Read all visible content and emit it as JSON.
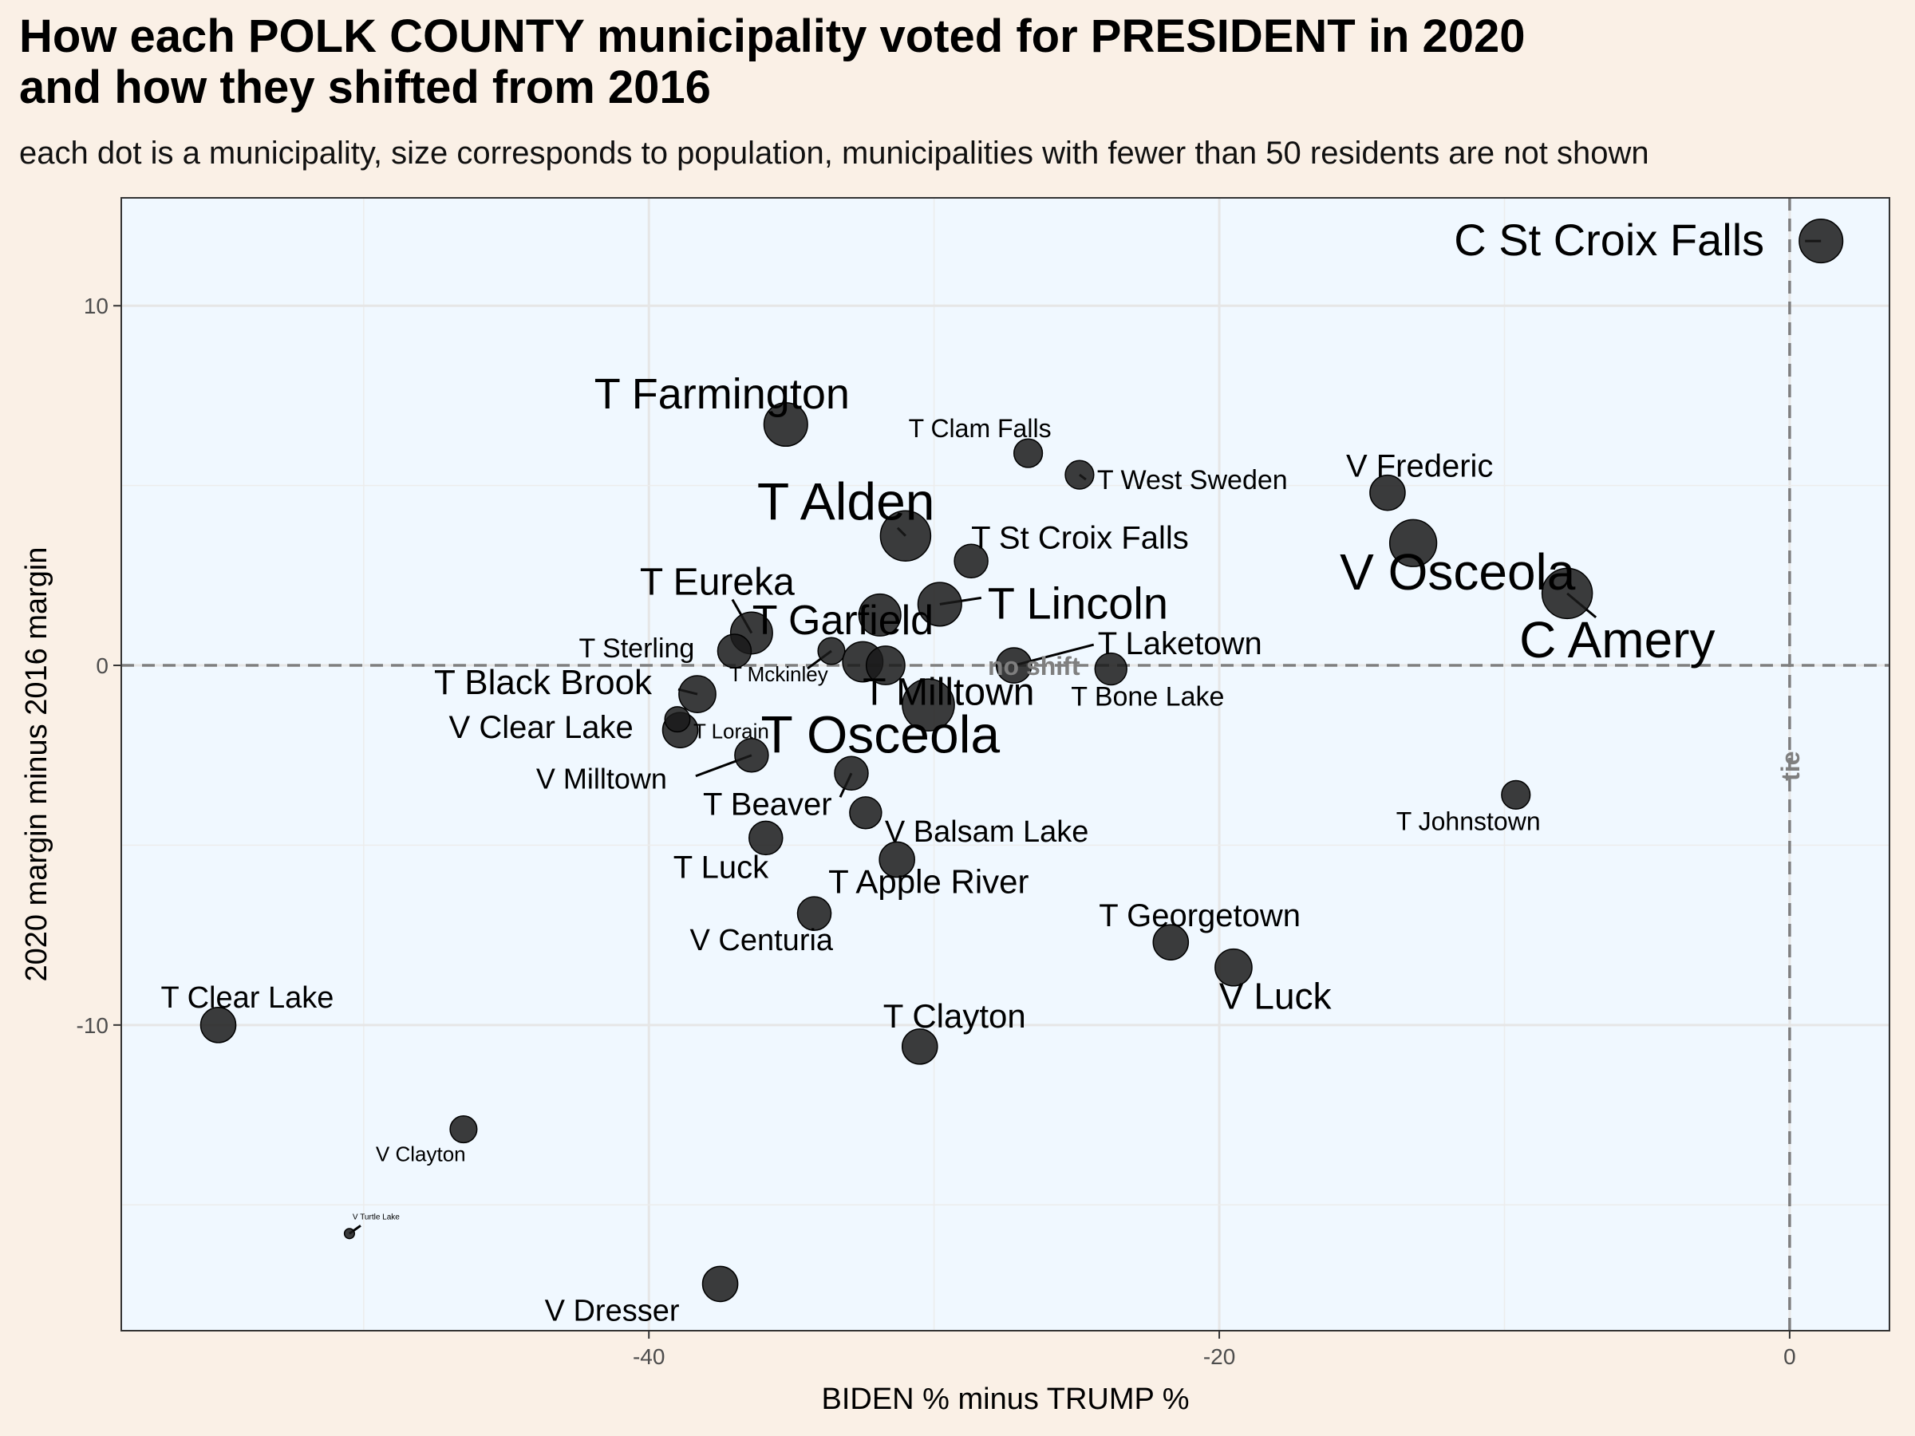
{
  "chart_data": {
    "type": "scatter",
    "title": "How each POLK COUNTY municipality voted for PRESIDENT in 2020\nand how they shifted from 2016",
    "subtitle": "each dot is a municipality, size corresponds to population, municipalities with fewer than 50 residents are not shown",
    "xlabel": "BIDEN % minus TRUMP %",
    "ylabel": "2020 margin minus 2016 margin",
    "xlim": [
      -58.5,
      3.5
    ],
    "ylim": [
      -18.5,
      13
    ],
    "x_ticks": [
      -40,
      -20,
      0
    ],
    "y_ticks": [
      -10,
      0,
      10
    ],
    "grid": true,
    "reference_lines": {
      "vertical": {
        "x": 0,
        "label": "tie"
      },
      "horizontal": {
        "y": 0,
        "label": "no shift"
      }
    },
    "colors": {
      "panel_background": "#f0f8ff",
      "page_background": "#faf0e6",
      "point_fill": "#1a1a1a",
      "reference_line": "#7f7f7f"
    },
    "points": [
      {
        "name": "C St Croix Falls",
        "x": 1.1,
        "y": 11.8,
        "size": 2.6
      },
      {
        "name": "T Farmington",
        "x": -35.2,
        "y": 6.7,
        "size": 2.6
      },
      {
        "name": "T Clam Falls",
        "x": -26.7,
        "y": 5.9,
        "size": 1.7
      },
      {
        "name": "T West Sweden",
        "x": -24.9,
        "y": 5.3,
        "size": 1.7
      },
      {
        "name": "V Frederic",
        "x": -14.1,
        "y": 4.8,
        "size": 2.1
      },
      {
        "name": "T Alden",
        "x": -31.0,
        "y": 3.6,
        "size": 3.0
      },
      {
        "name": "V Osceola",
        "x": -13.2,
        "y": 3.4,
        "size": 2.8
      },
      {
        "name": "T St Croix Falls",
        "x": -28.7,
        "y": 2.9,
        "size": 2.0
      },
      {
        "name": "C Amery",
        "x": -7.8,
        "y": 2.0,
        "size": 3.0
      },
      {
        "name": "T Lincoln",
        "x": -29.8,
        "y": 1.7,
        "size": 2.6
      },
      {
        "name": "T Eureka",
        "x": -36.4,
        "y": 0.9,
        "size": 2.5
      },
      {
        "name": "T Garfield",
        "x": -31.9,
        "y": 1.4,
        "size": 2.5
      },
      {
        "name": "T Sterling",
        "x": -37.0,
        "y": 0.4,
        "size": 2.0
      },
      {
        "name": "T Mckinley",
        "x": -33.6,
        "y": 0.4,
        "size": 1.6
      },
      {
        "name": "T Laketown",
        "x": -27.2,
        "y": 0.0,
        "size": 2.1
      },
      {
        "name": "T Bone Lake",
        "x": -23.8,
        "y": -0.1,
        "size": 1.9
      },
      {
        "name": "T Black Brook",
        "x": -38.3,
        "y": -0.8,
        "size": 2.2
      },
      {
        "name": "T Milltown",
        "x": -32.5,
        "y": 0.1,
        "size": 2.4
      },
      {
        "name": "T Osceola",
        "x": -30.2,
        "y": -1.1,
        "size": 3.1
      },
      {
        "name": "V Clear Lake",
        "x": -38.9,
        "y": -1.8,
        "size": 2.1
      },
      {
        "name": "T Lorain",
        "x": -39.0,
        "y": -1.5,
        "size": 1.5
      },
      {
        "name": "V Milltown",
        "x": -36.4,
        "y": -2.5,
        "size": 2.0
      },
      {
        "name": "T Beaver",
        "x": -32.9,
        "y": -3.0,
        "size": 2.0
      },
      {
        "name": "V Balsam Lake",
        "x": -32.4,
        "y": -4.1,
        "size": 1.9
      },
      {
        "name": "T Johnstown",
        "x": -9.6,
        "y": -3.6,
        "size": 1.7
      },
      {
        "name": "T Luck",
        "x": -35.9,
        "y": -4.8,
        "size": 2.0
      },
      {
        "name": "T Apple River",
        "x": -31.3,
        "y": -5.4,
        "size": 2.1
      },
      {
        "name": "V Centuria",
        "x": -34.2,
        "y": -6.9,
        "size": 2.0
      },
      {
        "name": "T Georgetown",
        "x": -21.7,
        "y": -7.7,
        "size": 2.1
      },
      {
        "name": "V Luck",
        "x": -19.5,
        "y": -8.4,
        "size": 2.2
      },
      {
        "name": "T Clear Lake",
        "x": -55.1,
        "y": -10.0,
        "size": 2.1
      },
      {
        "name": "T Clayton",
        "x": -30.5,
        "y": -10.6,
        "size": 2.1
      },
      {
        "name": "V Clayton",
        "x": -46.5,
        "y": -12.9,
        "size": 1.6
      },
      {
        "name": "V Turtle Lake",
        "x": -50.5,
        "y": -15.8,
        "size": 0.6
      },
      {
        "name": "V Dresser",
        "x": -37.5,
        "y": -17.2,
        "size": 2.1
      },
      {
        "name": "T Garfield (unlabeled)",
        "x": -31.7,
        "y": 0.0,
        "size": 2.3
      }
    ]
  }
}
